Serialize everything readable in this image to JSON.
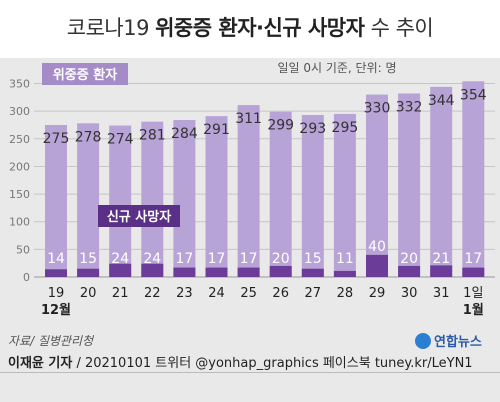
{
  "title": {
    "part1": "코로나19 ",
    "part2": "위중증 환자·신규 사망자",
    "part3": " 수 추이"
  },
  "note": "일일 0시 기준, 단위: 명",
  "colors": {
    "bar_critical": "#b8a3d6",
    "bar_deaths": "#6b3d99",
    "legend_critical": "#a58cc9",
    "legend_deaths": "#5a2f86",
    "background": "#e9e9e9"
  },
  "chart_data": {
    "type": "bar",
    "categories": [
      "19",
      "20",
      "21",
      "22",
      "23",
      "24",
      "25",
      "26",
      "27",
      "28",
      "29",
      "30",
      "31",
      "1일"
    ],
    "month_labels": [
      {
        "index": 0,
        "text": "12월"
      },
      {
        "index": 13,
        "text": "1월"
      }
    ],
    "series": [
      {
        "name": "위중증 환자",
        "values": [
          275,
          278,
          274,
          281,
          284,
          291,
          311,
          299,
          293,
          295,
          330,
          332,
          344,
          354
        ]
      },
      {
        "name": "신규 사망자",
        "values": [
          14,
          15,
          24,
          24,
          17,
          17,
          17,
          20,
          15,
          11,
          40,
          20,
          21,
          17
        ]
      }
    ],
    "y_ticks": [
      0,
      50,
      100,
      150,
      200,
      250,
      300,
      350
    ],
    "ylim": [
      0,
      360
    ],
    "grid": true
  },
  "source": "자료/ 질병관리청",
  "logo_text": "연합뉴스",
  "credit": {
    "author": "이재윤 기자",
    "rest": " / 20210101   트위터 @yonhap_graphics  페이스북 tuney.kr/LeYN1"
  }
}
